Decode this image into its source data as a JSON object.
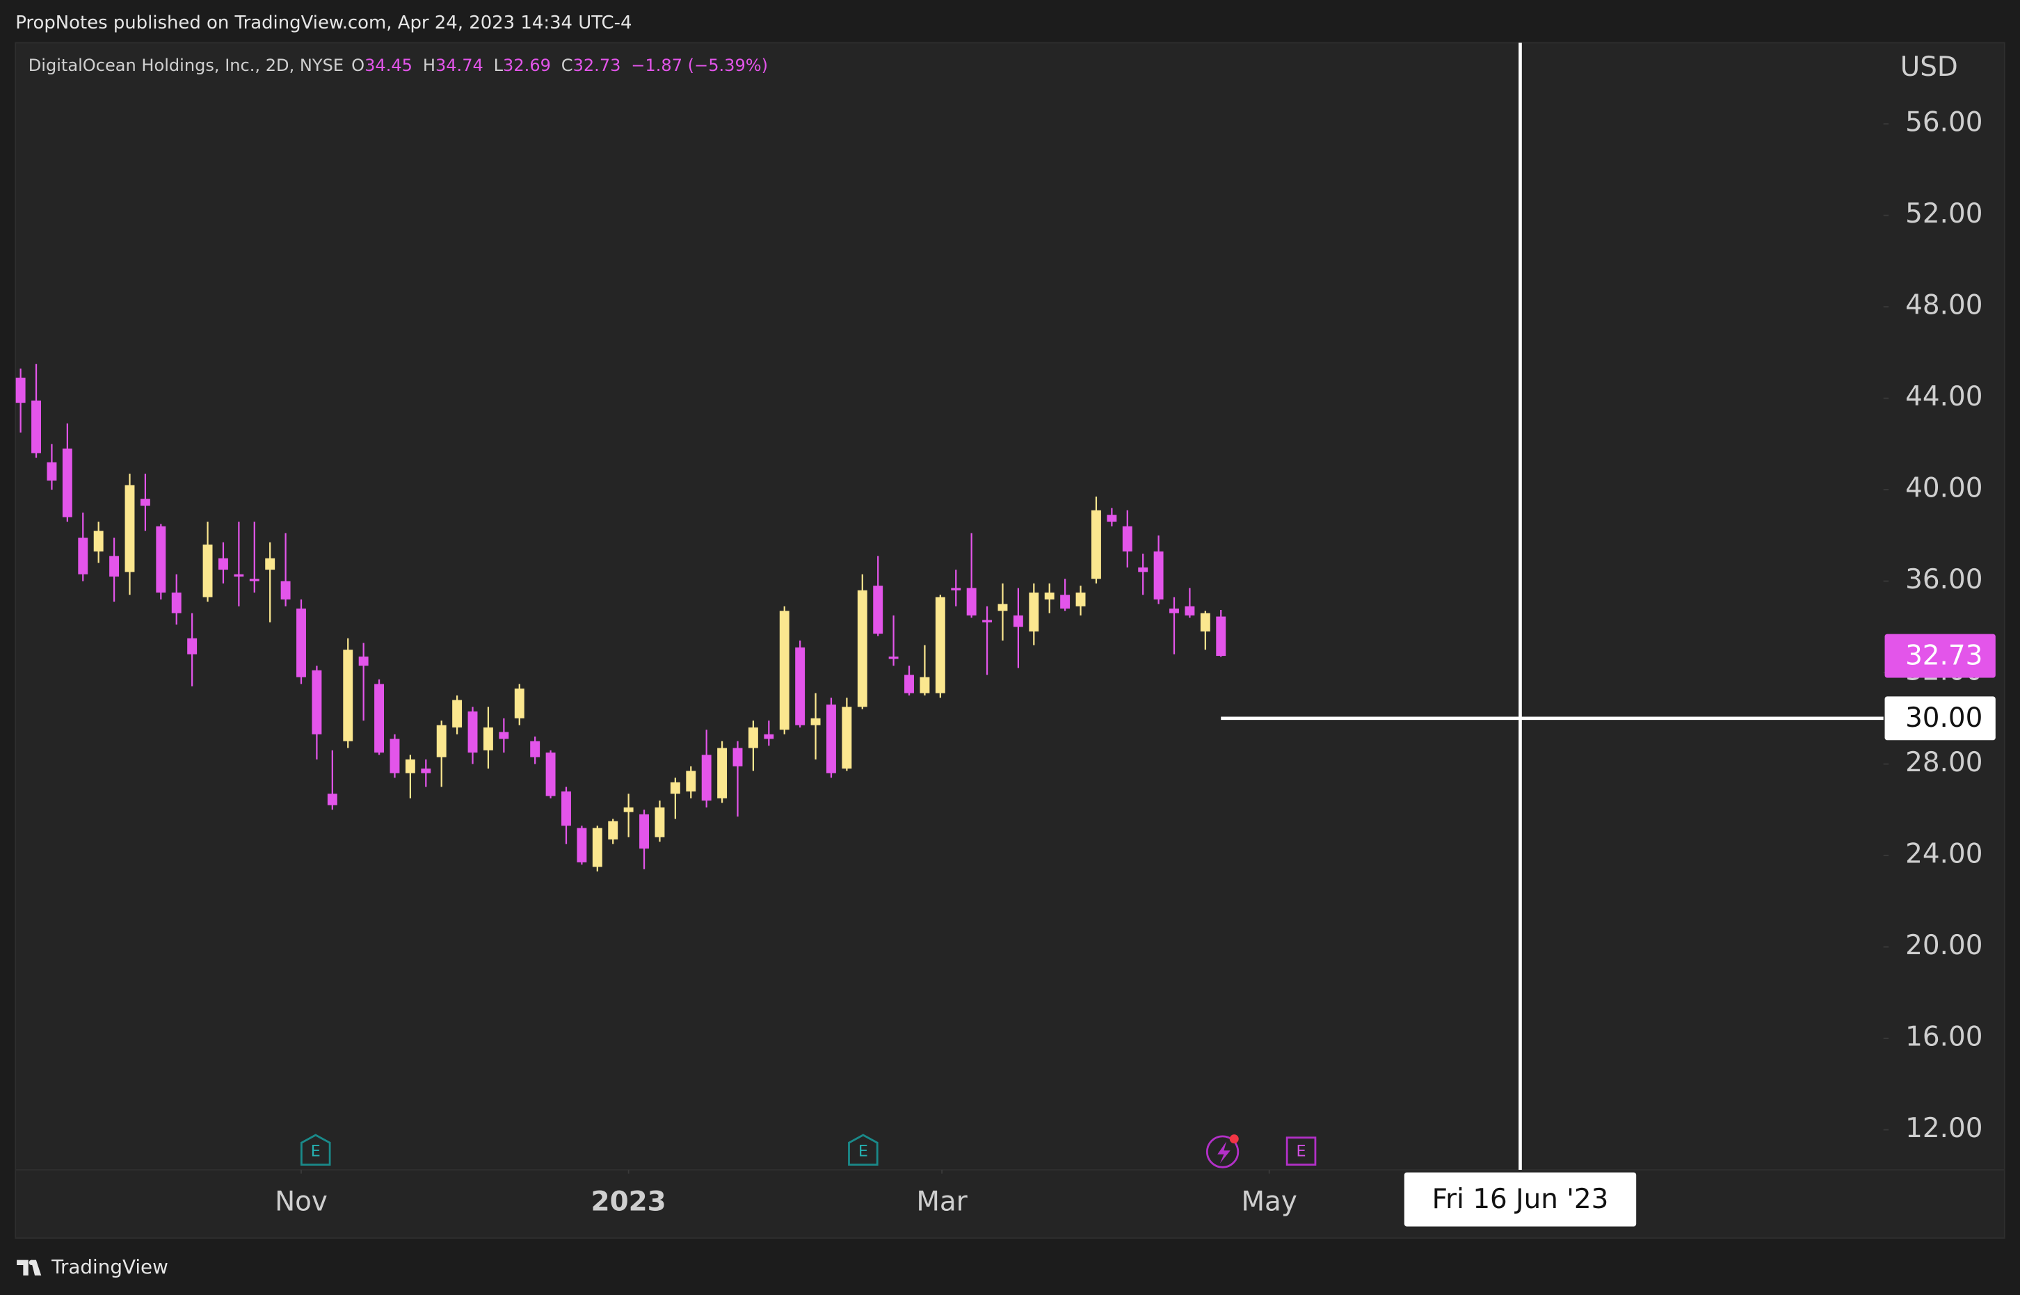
{
  "header": {
    "publisher": "PropNotes published on TradingView.com, Apr 24, 2023 14:34 UTC-4"
  },
  "footer": {
    "brand": "TradingView"
  },
  "event_icon": "E",
  "chart_data": {
    "type": "candlestick",
    "title": "DigitalOcean Holdings, Inc., 2D, NYSE",
    "legend": {
      "fields": [
        {
          "label": "O",
          "value": 34.45
        },
        {
          "label": "H",
          "value": 34.74
        },
        {
          "label": "L",
          "value": 32.69
        },
        {
          "label": "C",
          "value": 32.73
        }
      ],
      "change": "−1.87 (−5.39%)"
    },
    "y_axis_label": "USD",
    "up_color": "#fbe78f",
    "down_color": "#e355ea",
    "categories": [
      null,
      null,
      null,
      null,
      null,
      null,
      null,
      null,
      null,
      null,
      null,
      null,
      null,
      null,
      null,
      null,
      null,
      null,
      null,
      null,
      null,
      null,
      null,
      null,
      null,
      null,
      null,
      null,
      null,
      null,
      null,
      null,
      null,
      null,
      null,
      null,
      null,
      null,
      null,
      null,
      null,
      null,
      null,
      null,
      null,
      null,
      null,
      null,
      null,
      null,
      null,
      null,
      null,
      null,
      null,
      null,
      null,
      null,
      null,
      null,
      null,
      null,
      null,
      null,
      null,
      null,
      null,
      null,
      null,
      null,
      null,
      null,
      null,
      null,
      null,
      null,
      null,
      null
    ],
    "open": [
      44.9,
      43.9,
      41.2,
      41.8,
      37.9,
      37.3,
      37.1,
      36.4,
      39.6,
      38.4,
      35.5,
      33.5,
      35.3,
      37,
      36.3,
      36.1,
      36.5,
      36,
      34.8,
      32.1,
      26.7,
      29,
      32.7,
      31.5,
      29.1,
      27.6,
      27.8,
      28.3,
      29.6,
      30.3,
      28.6,
      29.4,
      30,
      29,
      28.5,
      26.8,
      25.2,
      23.5,
      24.7,
      25.9,
      25.8,
      24.8,
      26.7,
      26.8,
      28.4,
      26.5,
      28.7,
      28.7,
      29.3,
      29.5,
      33.1,
      29.7,
      30.6,
      27.8,
      30.5,
      35.8,
      32.7,
      31.9,
      31.1,
      31.1,
      35.7,
      35.7,
      34.3,
      34.7,
      34.5,
      33.8,
      35.2,
      35.4,
      34.9,
      36.1,
      38.9,
      38.4,
      36.6,
      37.3,
      34.8,
      34.9,
      33.8,
      34.45
    ],
    "high": [
      45.3,
      45.5,
      42,
      42.9,
      39,
      38.6,
      37.9,
      40.7,
      40.7,
      38.5,
      36.3,
      34.6,
      38.6,
      37.7,
      38.6,
      38.6,
      37.7,
      38.1,
      35.2,
      32.3,
      28.6,
      33.5,
      33.3,
      31.7,
      29.3,
      28.4,
      28.2,
      29.9,
      31,
      30.5,
      30.5,
      30,
      31.5,
      29.2,
      28.6,
      27,
      25.3,
      25.3,
      25.6,
      26.7,
      26,
      26.4,
      27.4,
      27.9,
      29.5,
      29,
      29,
      29.9,
      29.9,
      34.9,
      33.4,
      31.1,
      30.9,
      30.9,
      36.3,
      37.1,
      34.5,
      32.3,
      33.2,
      35.4,
      36.5,
      38.1,
      34.9,
      35.9,
      35.7,
      35.9,
      35.9,
      36.1,
      35.8,
      39.7,
      39.2,
      39.1,
      37.2,
      38,
      35.3,
      35.7,
      34.7,
      34.74
    ],
    "low": [
      42.5,
      41.4,
      40,
      38.6,
      36,
      36.8,
      35.1,
      35.4,
      38.2,
      35.2,
      34.1,
      31.4,
      35.1,
      35.9,
      34.9,
      35.5,
      34.2,
      34.9,
      31.5,
      28.2,
      26,
      28.7,
      29.9,
      28.4,
      27.4,
      26.5,
      27,
      27,
      29.3,
      28,
      27.8,
      28.5,
      29.7,
      28,
      26.5,
      24.5,
      23.6,
      23.3,
      24.5,
      24.8,
      23.4,
      24.6,
      25.6,
      26.5,
      26.1,
      26.3,
      25.7,
      27.7,
      28.8,
      29.3,
      29.6,
      28.2,
      27.4,
      27.7,
      30.4,
      33.6,
      32.3,
      31,
      31,
      30.9,
      34.9,
      34.4,
      31.9,
      33.4,
      32.2,
      33.2,
      34.6,
      34.7,
      34.5,
      35.9,
      38.4,
      36.6,
      35.4,
      35,
      32.8,
      34.4,
      33,
      32.69
    ],
    "close": [
      43.8,
      41.6,
      40.4,
      38.8,
      36.3,
      38.2,
      36.2,
      40.2,
      39.3,
      35.5,
      34.6,
      32.8,
      37.6,
      36.5,
      36.2,
      36,
      37,
      35.2,
      31.8,
      29.3,
      26.2,
      33,
      32.3,
      28.5,
      27.6,
      28.2,
      27.6,
      29.7,
      30.8,
      28.5,
      29.6,
      29.1,
      31.3,
      28.3,
      26.6,
      25.3,
      23.7,
      25.2,
      25.5,
      26.1,
      24.3,
      26.1,
      27.2,
      27.7,
      26.4,
      28.7,
      27.9,
      29.6,
      29.1,
      34.7,
      29.7,
      30,
      27.6,
      30.5,
      35.6,
      33.7,
      32.6,
      31.1,
      31.8,
      35.3,
      35.6,
      34.5,
      34.2,
      35,
      34,
      35.5,
      35.5,
      34.8,
      35.5,
      39.1,
      38.6,
      37.3,
      36.4,
      35.2,
      34.6,
      34.5,
      34.6,
      32.73
    ],
    "xlim": [
      -0.33,
      119.5
    ],
    "xticks": [
      {
        "value": 18,
        "label": "Nov"
      },
      {
        "value": 39,
        "label": "2023"
      },
      {
        "value": 59.1,
        "label": "Mar"
      },
      {
        "value": 80.1,
        "label": "May"
      }
    ],
    "ylim": [
      10.25,
      59.55
    ],
    "yticks": [
      {
        "value": 12,
        "label": "12.00"
      },
      {
        "value": 16,
        "label": "16.00"
      },
      {
        "value": 20,
        "label": "20.00"
      },
      {
        "value": 24,
        "label": "24.00"
      },
      {
        "value": 28,
        "label": "28.00"
      },
      {
        "value": 32,
        "label": "32.00"
      },
      {
        "value": 36,
        "label": "36.00"
      },
      {
        "value": 40,
        "label": "40.00"
      },
      {
        "value": 44,
        "label": "44.00"
      },
      {
        "value": 48,
        "label": "48.00"
      },
      {
        "value": 52,
        "label": "52.00"
      },
      {
        "value": 56,
        "label": "56.00"
      }
    ],
    "crosshair": {
      "price": {
        "value": 30,
        "label": "30.00"
      },
      "date": {
        "value": 96.2,
        "label": "Fri 16 Jun '23"
      }
    }
  }
}
